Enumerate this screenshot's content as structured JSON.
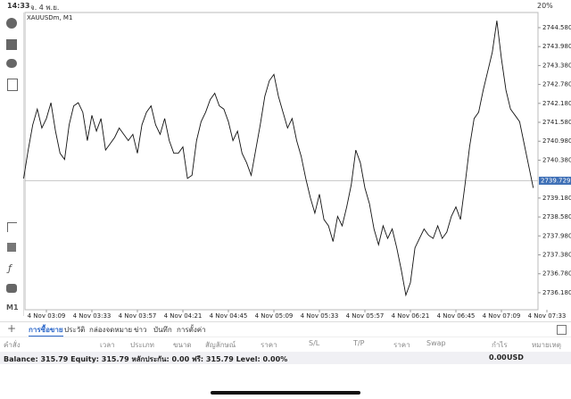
{
  "status_bar": {
    "time": "14:33",
    "date": "จ. 4 พ.ย.",
    "battery": "20%"
  },
  "sidebar": {
    "timeframe": "M1"
  },
  "chart_data": {
    "type": "line",
    "title": "XAUUSDm, M1",
    "color": "#111111",
    "current_price": 2739.729,
    "ylim": [
      2735.64,
      2745.06
    ],
    "yticks": [
      {
        "value": 2736.18,
        "label": "2736.180"
      },
      {
        "value": 2736.78,
        "label": "2736.780"
      },
      {
        "value": 2737.38,
        "label": "2737.380"
      },
      {
        "value": 2737.98,
        "label": "2737.980"
      },
      {
        "value": 2738.58,
        "label": "2738.580"
      },
      {
        "value": 2739.18,
        "label": "2739.180"
      },
      {
        "value": 2740.38,
        "label": "2740.380"
      },
      {
        "value": 2740.98,
        "label": "2740.980"
      },
      {
        "value": 2741.58,
        "label": "2741.580"
      },
      {
        "value": 2742.18,
        "label": "2742.180"
      },
      {
        "value": 2742.78,
        "label": "2742.780"
      },
      {
        "value": 2743.38,
        "label": "2743.380"
      },
      {
        "value": 2743.98,
        "label": "2743.980"
      },
      {
        "value": 2744.58,
        "label": "2744.580"
      }
    ],
    "categories": [
      null,
      null,
      null,
      null,
      null,
      "4 Nov 03:09",
      null,
      null,
      null,
      null,
      null,
      null,
      null,
      null,
      null,
      "4 Nov 03:33",
      null,
      null,
      null,
      null,
      null,
      null,
      null,
      null,
      null,
      "4 Nov 03:57",
      null,
      null,
      null,
      null,
      null,
      null,
      null,
      null,
      null,
      "4 Nov 04:21",
      null,
      null,
      null,
      null,
      null,
      null,
      null,
      null,
      null,
      "4 Nov 04:45",
      null,
      null,
      null,
      null,
      null,
      null,
      null,
      null,
      null,
      "4 Nov 05:09",
      null,
      null,
      null,
      null,
      null,
      null,
      null,
      null,
      null,
      "4 Nov 05:33",
      null,
      null,
      null,
      null,
      null,
      null,
      null,
      null,
      null,
      "4 Nov 05:57",
      null,
      null,
      null,
      null,
      null,
      null,
      null,
      null,
      null,
      "4 Nov 06:21",
      null,
      null,
      null,
      null,
      null,
      null,
      null,
      null,
      null,
      "4 Nov 06:45",
      null,
      null,
      null,
      null,
      null,
      null,
      null,
      null,
      null,
      "4 Nov 07:09",
      null,
      null,
      null,
      null,
      null,
      null,
      null,
      null,
      null,
      "4 Nov 07:33"
    ],
    "values": [
      2739.8,
      2740.7,
      2741.5,
      2742.0,
      2741.4,
      2741.7,
      2742.2,
      2741.3,
      2740.6,
      2740.4,
      2741.5,
      2742.1,
      2742.2,
      2741.9,
      2741.0,
      2741.8,
      2741.3,
      2741.7,
      2740.7,
      2740.9,
      2741.1,
      2741.4,
      2741.2,
      2741.0,
      2741.2,
      2740.6,
      2741.5,
      2741.9,
      2742.1,
      2741.5,
      2741.2,
      2741.7,
      2741.0,
      2740.6,
      2740.6,
      2740.8,
      2739.8,
      2739.9,
      2741.0,
      2741.6,
      2741.9,
      2742.3,
      2742.5,
      2742.1,
      2742.0,
      2741.6,
      2741.0,
      2741.3,
      2740.6,
      2740.3,
      2739.9,
      2740.7,
      2741.5,
      2742.4,
      2742.9,
      2743.1,
      2742.4,
      2741.9,
      2741.4,
      2741.7,
      2741.0,
      2740.5,
      2739.8,
      2739.2,
      2738.7,
      2739.3,
      2738.5,
      2738.3,
      2737.8,
      2738.6,
      2738.3,
      2738.9,
      2739.6,
      2740.7,
      2740.3,
      2739.5,
      2739.0,
      2738.2,
      2737.7,
      2738.3,
      2737.9,
      2738.2,
      2737.6,
      2736.9,
      2736.1,
      2736.5,
      2737.6,
      2737.9,
      2738.2,
      2738.0,
      2737.9,
      2738.3,
      2737.9,
      2738.1,
      2738.6,
      2738.9,
      2738.5,
      2739.6,
      2740.8,
      2741.7,
      2741.9,
      2742.6,
      2743.2,
      2743.8,
      2744.8,
      2743.6,
      2742.6,
      2742.0,
      2741.8,
      2741.6,
      2740.9,
      2740.2,
      2739.5,
      null,
      null,
      null
    ]
  },
  "tabs": [
    "การซื้อขาย",
    "ประวัติ",
    "กล่องจดหมาย",
    "ข่าว",
    "บันทึก",
    "การตั้งค่า"
  ],
  "table": {
    "headers": [
      "คำสั่ง",
      "เวลา",
      "ประเภท",
      "ขนาด",
      "สัญลักษณ์",
      "ราคา",
      "S/L",
      "T/P",
      "ราคา",
      "Swap",
      "กำไร",
      "หมายเหตุ"
    ]
  },
  "summary": {
    "text": "Balance: 315.79 Equity: 315.79 หลักประกัน: 0.00 ฟรี: 315.79 Level: 0.00%",
    "profit": "0.00",
    "currency": "USD"
  }
}
